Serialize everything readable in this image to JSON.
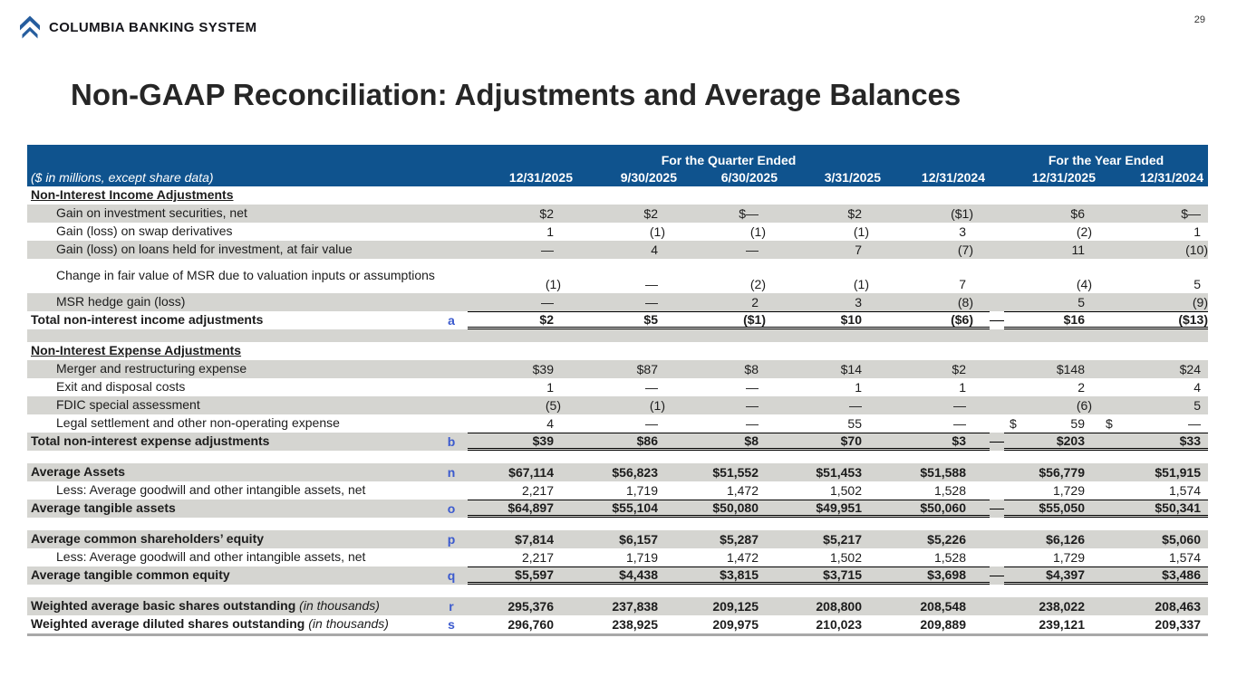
{
  "page": {
    "number": "29"
  },
  "brand": {
    "name": "COLUMBIA BANKING SYSTEM",
    "logo_icon": "double-chevron-up"
  },
  "title": "Non-GAAP Reconciliation: Adjustments and Average Balances",
  "colors": {
    "header_bg": "#0f538e",
    "stripe": "#d5d5d1",
    "ref_letter_blue": "#3b5ace",
    "logo_blue": "#265d9e",
    "bottom_rule": "#a8a8a8"
  },
  "table": {
    "subtitle": "($ in millions, except share data)",
    "group_headers": [
      {
        "label": "For the Quarter Ended",
        "span": 5
      },
      {
        "label": "For the Year Ended",
        "span": 2
      }
    ],
    "columns": [
      "12/31/2025",
      "9/30/2025",
      "6/30/2025",
      "3/31/2025",
      "12/31/2024",
      "12/31/2025",
      "12/31/2024"
    ],
    "rows": [
      {
        "type": "section",
        "label": "Non-Interest Income Adjustments"
      },
      {
        "type": "item",
        "label": "Gain on investment securities, net",
        "values": [
          "$2",
          "$2",
          "$—",
          "$2",
          "($1)",
          "$6",
          "$—"
        ]
      },
      {
        "type": "item",
        "label": "Gain (loss) on swap derivatives",
        "values": [
          "1",
          "(1)",
          "(1)",
          "(1)",
          "3",
          "(2)",
          "1"
        ]
      },
      {
        "type": "item",
        "label": "Gain (loss) on loans held for investment, at fair value",
        "values": [
          "—",
          "4",
          "—",
          "7",
          "(7)",
          "11",
          "(10)"
        ]
      },
      {
        "type": "item",
        "tall": true,
        "label": "Change in fair value of MSR due to valuation inputs or assumptions",
        "values": [
          "(1)",
          "—",
          "(2)",
          "(1)",
          "7",
          "(4)",
          "5"
        ]
      },
      {
        "type": "item",
        "label": "MSR hedge gain (loss)",
        "values": [
          "—",
          "—",
          "2",
          "3",
          "(8)",
          "5",
          "(9)"
        ]
      },
      {
        "type": "total",
        "label": "Total non-interest income adjustments",
        "ref": "a",
        "values": [
          "$2",
          "$5",
          "($1)",
          "$10",
          "($6)",
          "$16",
          "($13)"
        ]
      },
      {
        "type": "spacer"
      },
      {
        "type": "section",
        "label": "Non-Interest Expense Adjustments"
      },
      {
        "type": "item",
        "label": "Merger and restructuring expense",
        "values": [
          "$39",
          "$87",
          "$8",
          "$14",
          "$2",
          "$148",
          "$24"
        ]
      },
      {
        "type": "item",
        "label": "Exit and disposal costs",
        "values": [
          "1",
          "—",
          "—",
          "1",
          "1",
          "2",
          "4"
        ]
      },
      {
        "type": "item",
        "label": "FDIC special assessment",
        "values": [
          "(5)",
          "(1)",
          "—",
          "—",
          "—",
          "(6)",
          "5"
        ]
      },
      {
        "type": "item",
        "label": "Legal settlement and other non-operating expense",
        "values": [
          "4",
          "—",
          "—",
          "55",
          "—",
          "$|59",
          "$|—"
        ]
      },
      {
        "type": "total",
        "label": "Total non-interest expense adjustments",
        "ref": "b",
        "values": [
          "$39",
          "$86",
          "$8",
          "$70",
          "$3",
          "$203",
          "$33"
        ]
      },
      {
        "type": "spacer"
      },
      {
        "type": "bold_item",
        "label": "Average Assets",
        "ref": "n",
        "values": [
          "$67,114",
          "$56,823",
          "$51,552",
          "$51,453",
          "$51,588",
          "$56,779",
          "$51,915"
        ]
      },
      {
        "type": "item",
        "label": "Less: Average goodwill and other intangible assets, net",
        "values": [
          "2,217",
          "1,719",
          "1,472",
          "1,502",
          "1,528",
          "1,729",
          "1,574"
        ]
      },
      {
        "type": "total",
        "label": "Average tangible assets",
        "ref": "o",
        "values": [
          "$64,897",
          "$55,104",
          "$50,080",
          "$49,951",
          "$50,060",
          "$55,050",
          "$50,341"
        ]
      },
      {
        "type": "spacer"
      },
      {
        "type": "bold_item",
        "label": "Average common shareholders’ equity",
        "ref": "p",
        "values": [
          "$7,814",
          "$6,157",
          "$5,287",
          "$5,217",
          "$5,226",
          "$6,126",
          "$5,060"
        ]
      },
      {
        "type": "item",
        "label": "Less: Average goodwill and other intangible assets, net",
        "values": [
          "2,217",
          "1,719",
          "1,472",
          "1,502",
          "1,528",
          "1,729",
          "1,574"
        ]
      },
      {
        "type": "total",
        "label": "Average tangible common equity",
        "ref": "q",
        "values": [
          "$5,597",
          "$4,438",
          "$3,815",
          "$3,715",
          "$3,698",
          "$4,397",
          "$3,486"
        ]
      },
      {
        "type": "spacer"
      },
      {
        "type": "bold_item",
        "label": "Weighted average basic shares outstanding",
        "label_suffix": "(in thousands)",
        "ref": "r",
        "values": [
          "295,376",
          "237,838",
          "209,125",
          "208,800",
          "208,548",
          "238,022",
          "208,463"
        ]
      },
      {
        "type": "bold_item",
        "label": "Weighted average diluted shares outstanding",
        "label_suffix": "(in thousands)",
        "ref": "s",
        "values": [
          "296,760",
          "238,925",
          "209,975",
          "210,023",
          "209,889",
          "239,121",
          "209,337"
        ]
      }
    ]
  }
}
